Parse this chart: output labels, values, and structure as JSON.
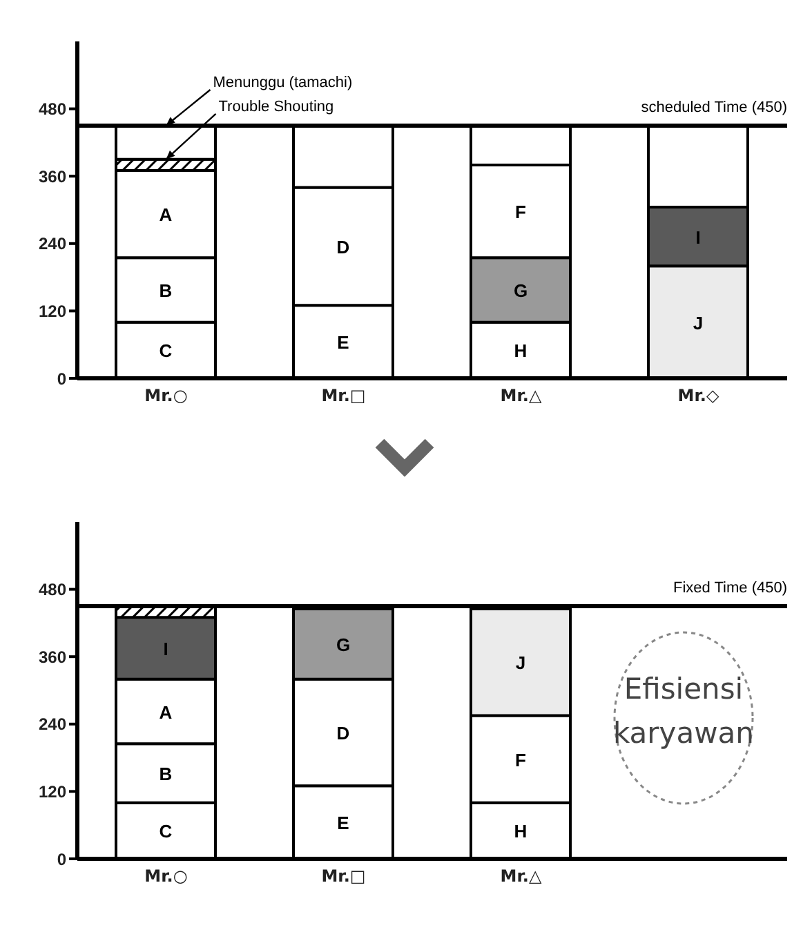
{
  "chart_data": [
    {
      "type": "bar",
      "stacked": true,
      "categories": [
        "Mr.○",
        "Mr.□",
        "Mr.△",
        "Mr.◇"
      ],
      "ylim": [
        0,
        600
      ],
      "yticks": [
        0,
        120,
        240,
        360,
        480
      ],
      "grid": false,
      "legend": false,
      "series": [
        {
          "color": "#ffffff",
          "colors": [
            "#ffffff",
            "#ffffff",
            "#ffffff",
            "#ebebeb"
          ],
          "values": [
            100,
            130,
            100,
            200
          ],
          "value_labels": [
            "C",
            "E",
            "H",
            "J"
          ]
        },
        {
          "color": "#ffffff",
          "colors": [
            "#ffffff",
            "#ffffff",
            "#9a9a9a",
            "#5a5a5a"
          ],
          "values": [
            115,
            210,
            115,
            105
          ],
          "value_labels": [
            "B",
            "D",
            "G",
            "I"
          ]
        },
        {
          "color": "#ffffff",
          "values": [
            155,
            null,
            165,
            null
          ],
          "value_labels": [
            "A",
            null,
            "F",
            null
          ]
        },
        {
          "color": "#000000",
          "values": [
            20,
            null,
            null,
            null
          ]
        },
        {
          "color": "#ffffff",
          "values": [
            60,
            110,
            70,
            145
          ]
        }
      ],
      "ref_lines": [
        {
          "axis": "y",
          "value": 450,
          "label": "scheduled Time (450)"
        }
      ],
      "annotations": [
        {
          "text": "Menunggu (tamachi)",
          "x": "Mr.○",
          "y": 450
        },
        {
          "text": "Trouble Shouting",
          "x": "Mr.○",
          "y": 390
        }
      ]
    },
    {
      "type": "bar",
      "stacked": true,
      "categories": [
        "Mr.○",
        "Mr.□",
        "Mr.△",
        null
      ],
      "ylim": [
        0,
        600
      ],
      "yticks": [
        0,
        120,
        240,
        360,
        480
      ],
      "grid": false,
      "legend": false,
      "series": [
        {
          "color": "#ffffff",
          "values": [
            100,
            130,
            100,
            null
          ],
          "value_labels": [
            "C",
            "E",
            "H",
            null
          ]
        },
        {
          "color": "#ffffff",
          "values": [
            105,
            190,
            155,
            null
          ],
          "value_labels": [
            "B",
            "D",
            "F",
            null
          ]
        },
        {
          "color": "#ffffff",
          "colors": [
            "#ffffff",
            "#9a9a9a",
            "#ebebeb",
            null
          ],
          "values": [
            115,
            125,
            190,
            null
          ],
          "value_labels": [
            "A",
            "G",
            "J",
            null
          ]
        },
        {
          "color": "#5a5a5a",
          "values": [
            110,
            null,
            null,
            null
          ],
          "value_labels": [
            "I",
            null,
            null,
            null
          ]
        },
        {
          "color": "#000000",
          "values": [
            20,
            null,
            null,
            null
          ]
        }
      ],
      "ref_lines": [
        {
          "axis": "y",
          "value": 450,
          "label": "Fixed Time (450)"
        }
      ],
      "annotations": [
        "Efisiensi karyawan"
      ]
    }
  ]
}
